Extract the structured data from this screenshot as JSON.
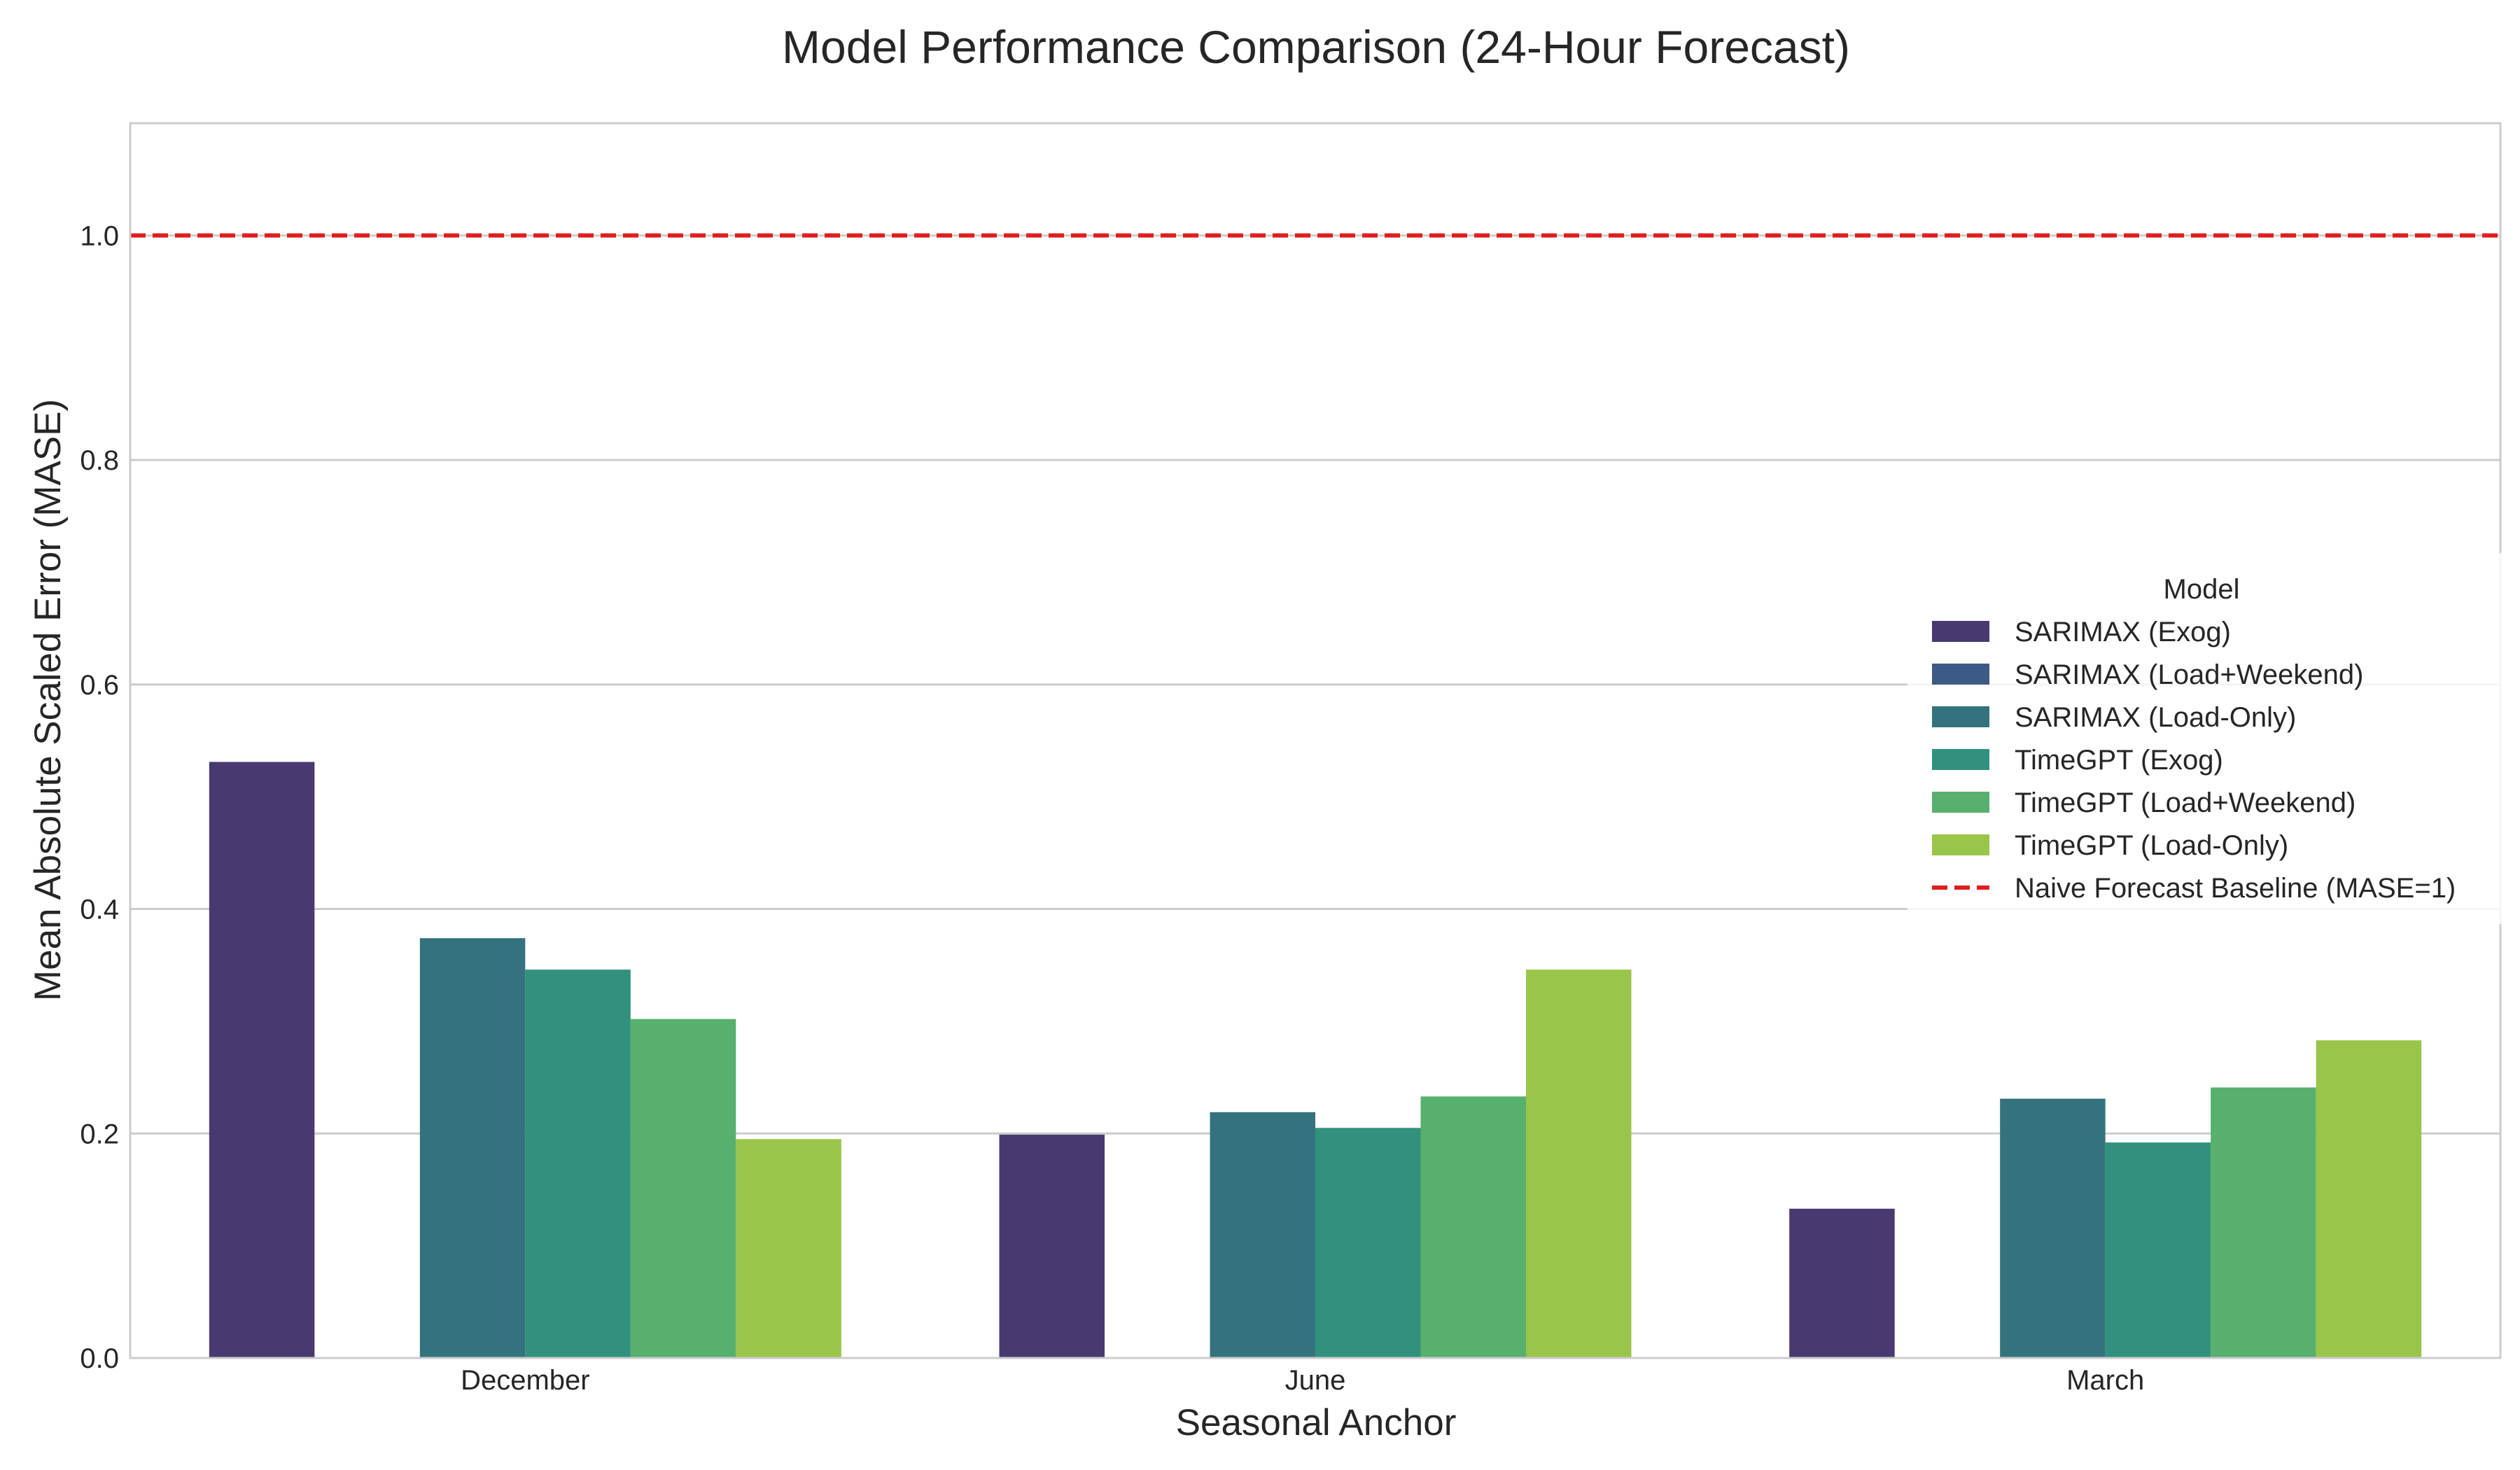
{
  "chart_data": {
    "type": "bar",
    "title": "Model Performance Comparison (24-Hour Forecast)",
    "xlabel": "Seasonal Anchor",
    "ylabel": "Mean Absolute Scaled Error (MASE)",
    "categories": [
      "December",
      "June",
      "March"
    ],
    "ylim": [
      0,
      1.1
    ],
    "yticks": [
      "0.0",
      "0.2",
      "0.4",
      "0.6",
      "0.8",
      "1.0"
    ],
    "grid": true,
    "legend_title": "Model",
    "legend_position": "center-right",
    "series": [
      {
        "name": "SARIMAX (Exog)",
        "color": "#483a70",
        "values": [
          0.531,
          0.199,
          0.133
        ]
      },
      {
        "name": "SARIMAX (Load+Weekend)",
        "color": "#3c5a86",
        "values": [
          null,
          null,
          null
        ]
      },
      {
        "name": "SARIMAX (Load-Only)",
        "color": "#34737d",
        "values": [
          0.374,
          0.219,
          0.231
        ]
      },
      {
        "name": "TimeGPT (Exog)",
        "color": "#31917e",
        "values": [
          0.346,
          0.205,
          0.192
        ]
      },
      {
        "name": "TimeGPT (Load+Weekend)",
        "color": "#58b06e",
        "values": [
          0.302,
          0.233,
          0.241
        ]
      },
      {
        "name": "TimeGPT (Load-Only)",
        "color": "#9ac54b",
        "values": [
          0.195,
          0.346,
          0.283
        ]
      }
    ],
    "baseline": {
      "name": "Naive Forecast Baseline (MASE=1)",
      "value": 1.0,
      "color": "#e01e1e",
      "style": "dashed"
    }
  }
}
